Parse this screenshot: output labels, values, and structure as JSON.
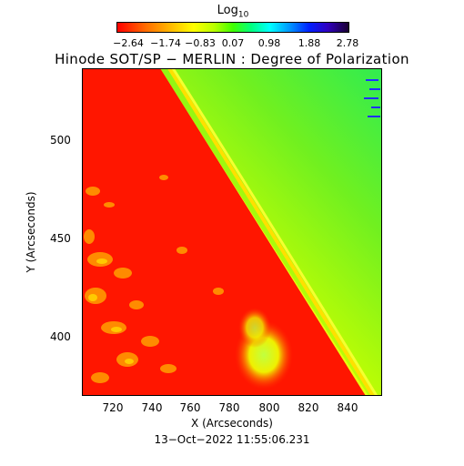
{
  "colorbar": {
    "title_base": "Log",
    "title_sub": "10",
    "ticks": [
      "−2.64",
      "−1.74",
      "−0.83",
      "0.07",
      "0.98",
      "1.88",
      "2.78"
    ]
  },
  "title": "Hinode SOT/SP − MERLIN : Degree of Polarization",
  "axes": {
    "x_ticks": [
      "720",
      "740",
      "760",
      "780",
      "800",
      "820",
      "840"
    ],
    "y_ticks": [
      "500",
      "450",
      "400"
    ],
    "xlabel": "X (Arcseconds)",
    "ylabel": "Y (Arcseconds)"
  },
  "footer": "13−Oct−2022 11:55:06.231",
  "colors": {
    "disk": "#ff1a00",
    "limb_band": "#e8ff00",
    "offlimb_far": "#40f040"
  }
}
